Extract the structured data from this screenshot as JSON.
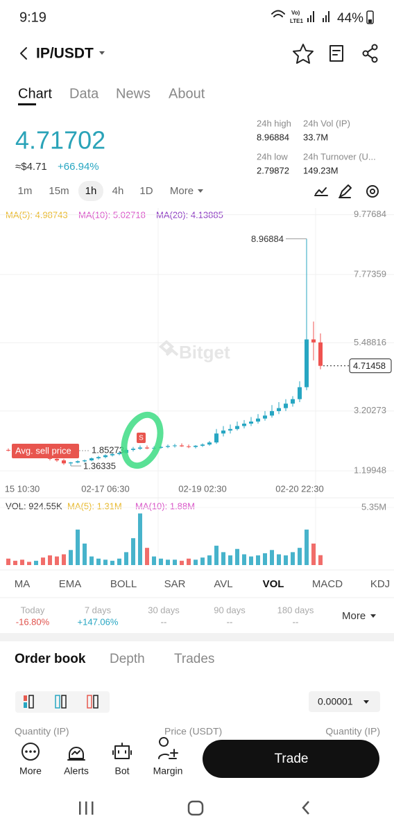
{
  "status": {
    "time": "9:19",
    "network": [
      "Vo)",
      "LTE1"
    ],
    "battery": "44%"
  },
  "header": {
    "pair": "IP/USDT"
  },
  "tabs": [
    "Chart",
    "Data",
    "News",
    "About"
  ],
  "ticker": {
    "price": "4.71702",
    "usd": "≈$4.71",
    "change": "+66.94%",
    "stats": [
      {
        "label": "24h high",
        "value": "8.96884"
      },
      {
        "label": "24h Vol (IP)",
        "value": "33.7M"
      },
      {
        "label": "24h low",
        "value": "2.79872"
      },
      {
        "label": "24h Turnover (U...",
        "value": "149.23M"
      }
    ]
  },
  "intervals": [
    "1m",
    "15m",
    "1h",
    "4h",
    "1D",
    "More"
  ],
  "chart_data": {
    "type": "candlestick",
    "ma_legend": [
      {
        "name": "MA(5): 4.98743",
        "color": "#e8b92e"
      },
      {
        "name": "MA(10): 5.02718",
        "color": "#d957c8"
      },
      {
        "name": "MA(20): 4.13885",
        "color": "#8e3fc2"
      }
    ],
    "up_color": "#27a6c2",
    "down_color": "#ef5350",
    "ylim": [
      0.9,
      10.0
    ],
    "yticks": [
      1.19948,
      3.20273,
      5.48816,
      7.77359,
      9.77684
    ],
    "grid": true,
    "categories": [
      null,
      null,
      "15 10:30",
      null,
      null,
      null,
      null,
      null,
      null,
      null,
      null,
      null,
      null,
      null,
      "02-17 06:30",
      null,
      null,
      null,
      null,
      null,
      null,
      null,
      null,
      null,
      null,
      null,
      null,
      null,
      "02-19 02:30",
      null,
      null,
      null,
      null,
      null,
      null,
      null,
      null,
      null,
      null,
      null,
      null,
      null,
      "02-20 22:30",
      null,
      null,
      null
    ],
    "candles": [
      [
        1.9,
        1.95,
        1.85,
        1.88
      ],
      [
        1.88,
        1.92,
        1.84,
        1.86
      ],
      [
        1.86,
        1.9,
        1.8,
        1.83
      ],
      [
        1.83,
        1.87,
        1.78,
        1.8
      ],
      [
        1.8,
        1.85,
        1.76,
        1.82
      ],
      [
        1.82,
        1.86,
        1.7,
        1.72
      ],
      [
        1.72,
        1.76,
        1.55,
        1.6
      ],
      [
        1.6,
        1.65,
        1.5,
        1.55
      ],
      [
        1.55,
        1.6,
        1.4,
        1.45
      ],
      [
        1.45,
        1.5,
        1.36335,
        1.48
      ],
      [
        1.48,
        1.55,
        1.45,
        1.52
      ],
      [
        1.52,
        1.58,
        1.48,
        1.55
      ],
      [
        1.55,
        1.65,
        1.52,
        1.62
      ],
      [
        1.62,
        1.7,
        1.58,
        1.66
      ],
      [
        1.66,
        1.75,
        1.62,
        1.72
      ],
      [
        1.72,
        1.8,
        1.68,
        1.76
      ],
      [
        1.76,
        1.85,
        1.72,
        1.8
      ],
      [
        1.8,
        1.95,
        1.78,
        1.9
      ],
      [
        1.9,
        2.0,
        1.85,
        1.94
      ],
      [
        1.94,
        2.05,
        1.9,
        1.98
      ],
      [
        1.98,
        2.05,
        1.92,
        1.95
      ],
      [
        1.95,
        2.02,
        1.9,
        1.97
      ],
      [
        1.97,
        2.05,
        1.94,
        2.0
      ],
      [
        2.0,
        2.08,
        1.96,
        2.03
      ],
      [
        2.03,
        2.1,
        1.98,
        2.05
      ],
      [
        2.05,
        2.12,
        2.0,
        2.02
      ],
      [
        2.02,
        2.08,
        1.96,
        2.0
      ],
      [
        2.0,
        2.06,
        1.95,
        2.04
      ],
      [
        2.04,
        2.12,
        2.0,
        2.08
      ],
      [
        2.08,
        2.2,
        2.04,
        2.15
      ],
      [
        2.15,
        2.6,
        2.1,
        2.45
      ],
      [
        2.45,
        2.7,
        2.35,
        2.55
      ],
      [
        2.55,
        2.75,
        2.45,
        2.6
      ],
      [
        2.6,
        2.85,
        2.55,
        2.7
      ],
      [
        2.7,
        2.9,
        2.62,
        2.78
      ],
      [
        2.78,
        3.0,
        2.7,
        2.85
      ],
      [
        2.85,
        3.1,
        2.78,
        2.95
      ],
      [
        2.95,
        3.2,
        2.88,
        3.05
      ],
      [
        3.05,
        3.4,
        2.98,
        3.2
      ],
      [
        3.2,
        3.5,
        3.1,
        3.3
      ],
      [
        3.3,
        3.6,
        3.2,
        3.45
      ],
      [
        3.45,
        3.7,
        3.35,
        3.6
      ],
      [
        3.6,
        4.2,
        3.5,
        4.0
      ],
      [
        4.0,
        8.96884,
        3.9,
        5.6
      ],
      [
        5.6,
        6.2,
        4.9,
        5.5
      ],
      [
        5.5,
        5.8,
        4.6,
        4.71458
      ]
    ],
    "annotations": {
      "high": "8.96884",
      "avg_sell": "Avg. sell price",
      "avg_sell_price": "1.85273",
      "low": "1.36335",
      "last": "4.71458",
      "marker": "S",
      "watermark": "Bitget"
    },
    "volume": {
      "legend": [
        {
          "name": "VOL: 924.55K",
          "color": "#333333"
        },
        {
          "name": "MA(5): 1.31M",
          "color": "#e8b92e"
        },
        {
          "name": "MA(10): 1.88M",
          "color": "#d957c8"
        }
      ],
      "ylim": [
        0,
        5.35
      ],
      "yticks": [
        {
          "value": 5.35,
          "label": "5.35M"
        }
      ],
      "values": [
        0.6,
        0.4,
        0.5,
        0.3,
        0.4,
        0.7,
        0.9,
        0.8,
        1.0,
        1.4,
        3.3,
        2.0,
        0.8,
        0.6,
        0.5,
        0.4,
        0.6,
        1.2,
        2.5,
        4.8,
        1.6,
        0.8,
        0.6,
        0.5,
        0.5,
        0.4,
        0.6,
        0.5,
        0.7,
        0.9,
        1.8,
        1.2,
        0.9,
        1.5,
        1.0,
        0.8,
        0.9,
        1.1,
        1.4,
        1.0,
        0.9,
        1.2,
        1.6,
        3.3,
        2.0,
        0.92
      ]
    }
  },
  "indicators": [
    "MA",
    "EMA",
    "BOLL",
    "SAR",
    "AVL",
    "VOL",
    "MACD",
    "KDJ"
  ],
  "performance": {
    "items": [
      {
        "label": "Today",
        "value": "-16.80%",
        "color": "#e0524c"
      },
      {
        "label": "7 days",
        "value": "+147.06%",
        "color": "#27a6c2"
      },
      {
        "label": "30 days",
        "value": "--",
        "color": "#999999"
      },
      {
        "label": "90 days",
        "value": "--",
        "color": "#999999"
      },
      {
        "label": "180 days",
        "value": "--",
        "color": "#999999"
      }
    ],
    "more": "More"
  },
  "orderbook": {
    "tabs": [
      "Order book",
      "Depth",
      "Trades"
    ],
    "precision": "0.00001",
    "columns": [
      "Quantity (IP)",
      "Price (USDT)",
      "Quantity (IP)"
    ]
  },
  "bottom": {
    "items": [
      "More",
      "Alerts",
      "Bot",
      "Margin"
    ],
    "trade": "Trade"
  }
}
